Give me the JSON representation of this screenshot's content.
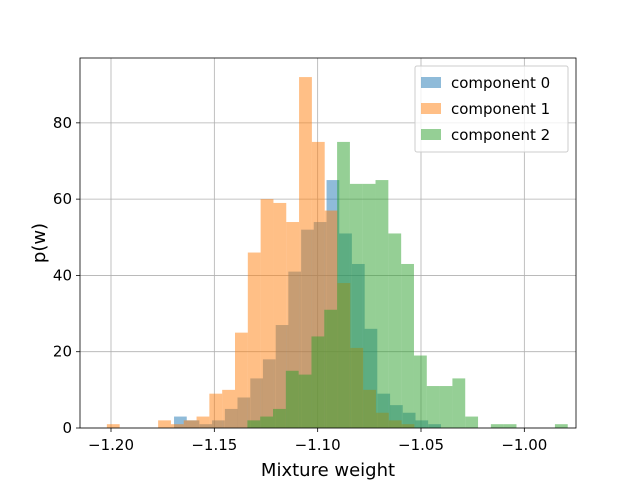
{
  "chart_data": {
    "type": "histogram",
    "xlabel": "Mixture weight",
    "ylabel": "p(w)",
    "xlim": [
      -1.215,
      -0.975
    ],
    "ylim": [
      0,
      97
    ],
    "grid": true,
    "legend_position": "top-right",
    "xticks": [
      {
        "value": -1.2,
        "label": "−1.20"
      },
      {
        "value": -1.15,
        "label": "−1.15"
      },
      {
        "value": -1.1,
        "label": "−1.10"
      },
      {
        "value": -1.05,
        "label": "−1.05"
      },
      {
        "value": -1.0,
        "label": "−1.00"
      }
    ],
    "yticks": [
      {
        "value": 0,
        "label": "0"
      },
      {
        "value": 20,
        "label": "20"
      },
      {
        "value": 40,
        "label": "40"
      },
      {
        "value": 60,
        "label": "60"
      },
      {
        "value": 80,
        "label": "80"
      }
    ],
    "series": [
      {
        "name": "component 0",
        "color": "#1f77b4",
        "opacity": 0.5,
        "bin_width": 0.00615,
        "bins": [
          [
            -1.1695,
            3
          ],
          [
            -1.1634,
            2
          ],
          [
            -1.1572,
            1
          ],
          [
            -1.1511,
            2
          ],
          [
            -1.1449,
            5
          ],
          [
            -1.1388,
            8
          ],
          [
            -1.1326,
            13
          ],
          [
            -1.1265,
            18
          ],
          [
            -1.1203,
            27
          ],
          [
            -1.1142,
            41
          ],
          [
            -1.108,
            52
          ],
          [
            -1.1019,
            54
          ],
          [
            -1.0957,
            65
          ],
          [
            -1.0896,
            51
          ],
          [
            -1.0834,
            43
          ],
          [
            -1.0773,
            26
          ],
          [
            -1.0711,
            9
          ],
          [
            -1.065,
            6
          ],
          [
            -1.0588,
            4
          ],
          [
            -1.0527,
            2
          ],
          [
            -1.0465,
            1
          ]
        ]
      },
      {
        "name": "component 1",
        "color": "#ff7f0e",
        "opacity": 0.5,
        "bin_width": 0.0062,
        "bins": [
          [
            -1.202,
            1
          ],
          [
            -1.1958,
            0
          ],
          [
            -1.1896,
            0
          ],
          [
            -1.1834,
            0
          ],
          [
            -1.1772,
            2
          ],
          [
            -1.171,
            1
          ],
          [
            -1.1648,
            2
          ],
          [
            -1.1586,
            3
          ],
          [
            -1.1524,
            9
          ],
          [
            -1.1462,
            10
          ],
          [
            -1.14,
            25
          ],
          [
            -1.1338,
            46
          ],
          [
            -1.1276,
            60
          ],
          [
            -1.1214,
            59
          ],
          [
            -1.1152,
            54
          ],
          [
            -1.109,
            92
          ],
          [
            -1.1028,
            75
          ],
          [
            -1.0966,
            57
          ],
          [
            -1.0904,
            38
          ],
          [
            -1.0842,
            21
          ],
          [
            -1.078,
            10
          ],
          [
            -1.0718,
            4
          ],
          [
            -1.0656,
            2
          ],
          [
            -1.0594,
            1
          ]
        ]
      },
      {
        "name": "component 2",
        "color": "#2ca02c",
        "opacity": 0.5,
        "bin_width": 0.0062,
        "bins": [
          [
            -1.134,
            2
          ],
          [
            -1.1278,
            3
          ],
          [
            -1.1216,
            5
          ],
          [
            -1.1154,
            15
          ],
          [
            -1.1092,
            14
          ],
          [
            -1.103,
            24
          ],
          [
            -1.0968,
            31
          ],
          [
            -1.0906,
            75
          ],
          [
            -1.0844,
            64
          ],
          [
            -1.0782,
            64
          ],
          [
            -1.072,
            65
          ],
          [
            -1.0658,
            51
          ],
          [
            -1.0596,
            43
          ],
          [
            -1.0534,
            19
          ],
          [
            -1.0472,
            11
          ],
          [
            -1.041,
            11
          ],
          [
            -1.0348,
            13
          ],
          [
            -1.0286,
            3
          ],
          [
            -1.0224,
            0
          ],
          [
            -1.0162,
            1
          ],
          [
            -1.01,
            1
          ],
          [
            -1.0038,
            0
          ],
          [
            -0.9976,
            0
          ],
          [
            -0.9914,
            0
          ],
          [
            -0.9852,
            1
          ]
        ]
      }
    ]
  }
}
